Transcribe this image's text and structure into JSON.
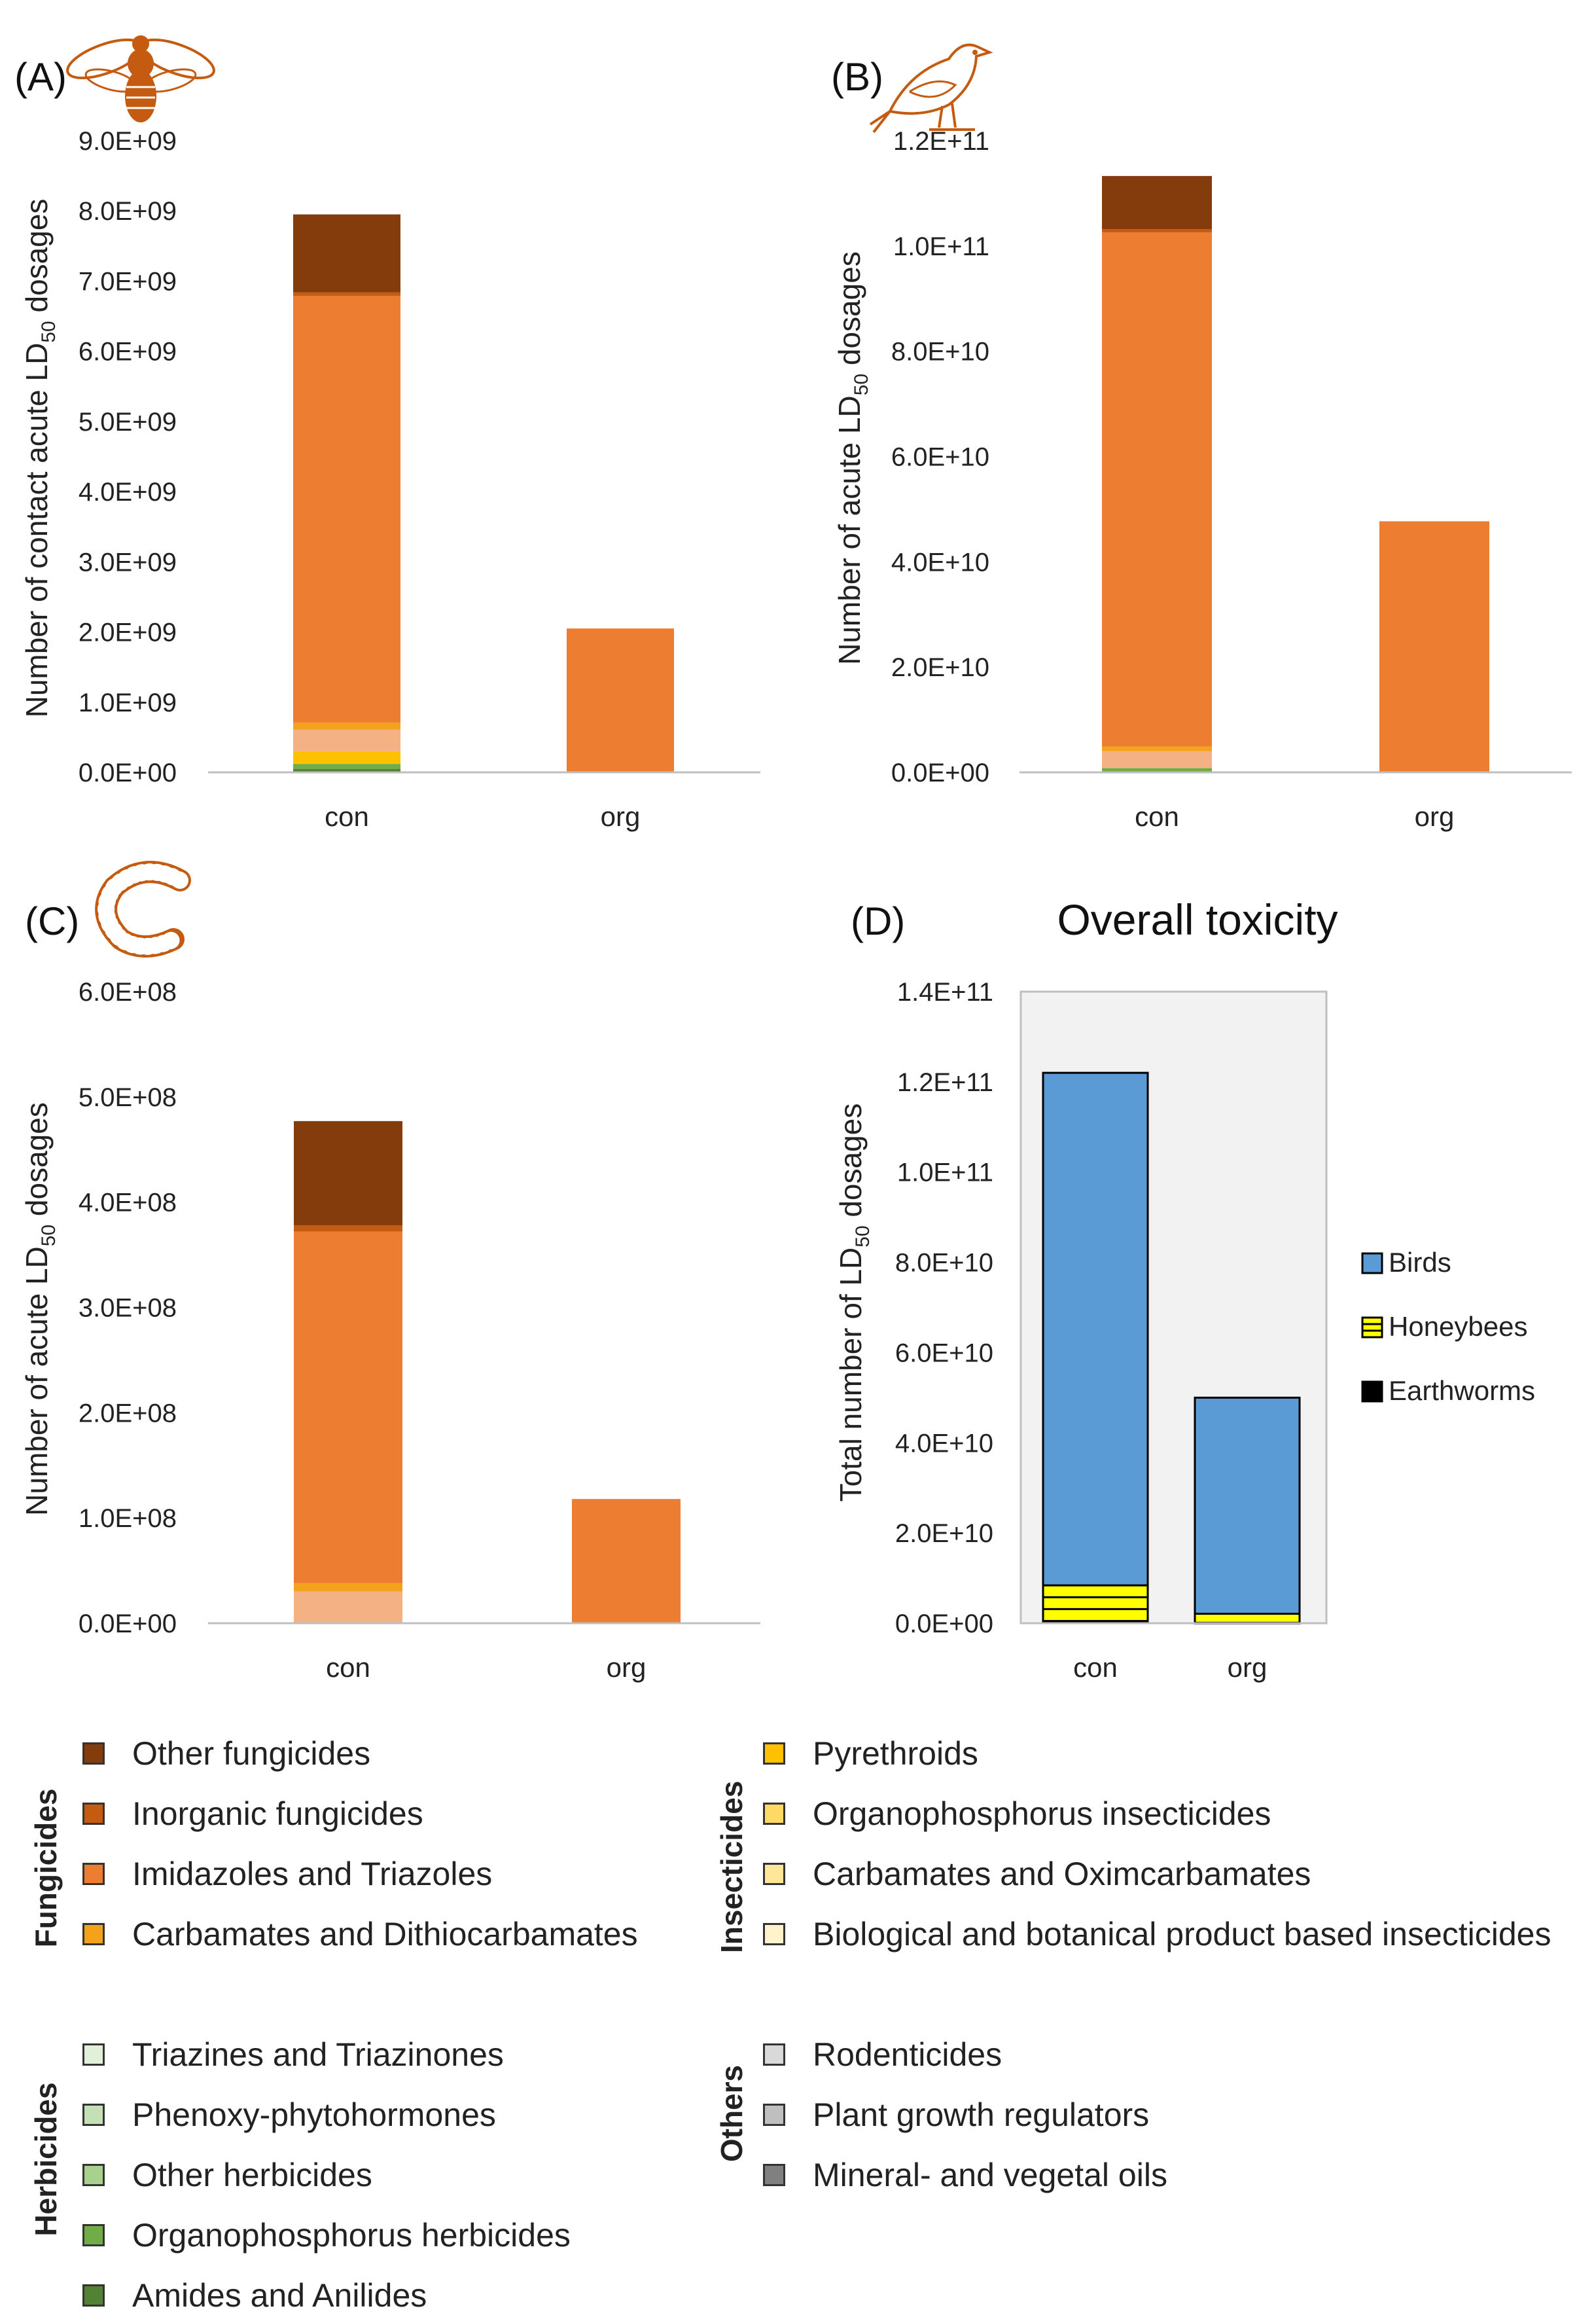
{
  "colors": {
    "other_fungicides": "#843c0c",
    "inorganic_fungicides": "#c55a11",
    "imidazoles_triazoles": "#ed7d31",
    "carbamates_dithio": "#f4a21c",
    "pyrethroids": "#ffc000",
    "organophos_insecticides": "#ffd966",
    "carbamates_oxim": "#ffe699",
    "bio_botanical": "#fff2cc",
    "salmon": "#f4b183",
    "triazines": "#e2f0d9",
    "phenoxy": "#c5e0b4",
    "other_herbicides": "#a9d18e",
    "organophos_herbicides": "#70ad47",
    "amides": "#548235",
    "rodenticides": "#d9d9d9",
    "plant_growth": "#bfbfbf",
    "mineral_oils": "#808080",
    "birds": "#5b9bd5",
    "honeybees": "#ffff00",
    "earthworms": "#000000"
  },
  "chart_data": [
    {
      "id": "A",
      "panel_label": "(A)",
      "icon": "bee-icon",
      "type": "bar",
      "stacked": true,
      "categories": [
        "con",
        "org"
      ],
      "ylabel_main": "Number of contact acute LD",
      "ylabel_sub": "50",
      "ylabel_tail": " dosages",
      "ylim": [
        0,
        9000000000
      ],
      "yticks": [
        0,
        1000000000,
        2000000000,
        3000000000,
        4000000000,
        5000000000,
        6000000000,
        7000000000,
        8000000000,
        9000000000
      ],
      "ytick_labels": [
        "0.0E+00",
        "1.0E+09",
        "2.0E+09",
        "3.0E+09",
        "4.0E+09",
        "5.0E+09",
        "6.0E+09",
        "7.0E+09",
        "8.0E+09",
        "9.0E+09"
      ],
      "series": [
        {
          "name": "Amides and Anilides",
          "color_key": "amides",
          "values": [
            50000000,
            0
          ]
        },
        {
          "name": "Organophosphorus herbicides",
          "color_key": "organophos_herbicides",
          "values": [
            70000000,
            0
          ]
        },
        {
          "name": "Pyrethroids",
          "color_key": "pyrethroids",
          "values": [
            180000000,
            0
          ]
        },
        {
          "name": "Carbamates and Oximcarbamates",
          "color_key": "salmon",
          "values": [
            310000000,
            0
          ]
        },
        {
          "name": "Carbamates and Dithiocarbamates",
          "color_key": "carbamates_dithio",
          "values": [
            100000000,
            0
          ]
        },
        {
          "name": "Imidazoles and Triazoles",
          "color_key": "imidazoles_triazoles",
          "values": [
            6080000000,
            2050000000
          ]
        },
        {
          "name": "Inorganic fungicides",
          "color_key": "inorganic_fungicides",
          "values": [
            50000000,
            0
          ]
        },
        {
          "name": "Other fungicides",
          "color_key": "other_fungicides",
          "values": [
            1110000000,
            0
          ]
        }
      ]
    },
    {
      "id": "B",
      "panel_label": "(B)",
      "icon": "bird-icon",
      "type": "bar",
      "stacked": true,
      "categories": [
        "con",
        "org"
      ],
      "ylabel_main": "Number of acute LD",
      "ylabel_sub": "50",
      "ylabel_tail": " dosages",
      "ylim": [
        0,
        120000000000
      ],
      "yticks": [
        0,
        20000000000,
        40000000000,
        60000000000,
        80000000000,
        100000000000,
        120000000000
      ],
      "ytick_labels": [
        "0.0E+00",
        "2.0E+10",
        "4.0E+10",
        "6.0E+10",
        "8.0E+10",
        "1.0E+11",
        "1.2E+11"
      ],
      "series": [
        {
          "name": "Organophosphorus herbicides",
          "color_key": "organophos_herbicides",
          "values": [
            800000000,
            0
          ]
        },
        {
          "name": "Carbamates and Oximcarbamates",
          "color_key": "salmon",
          "values": [
            3200000000,
            0
          ]
        },
        {
          "name": "Carbamates and Dithiocarbamates",
          "color_key": "carbamates_dithio",
          "values": [
            900000000,
            0
          ]
        },
        {
          "name": "Imidazoles and Triazoles",
          "color_key": "imidazoles_triazoles",
          "values": [
            97700000000,
            47700000000
          ]
        },
        {
          "name": "Inorganic fungicides",
          "color_key": "inorganic_fungicides",
          "values": [
            600000000,
            0
          ]
        },
        {
          "name": "Other fungicides",
          "color_key": "other_fungicides",
          "values": [
            10100000000,
            0
          ]
        }
      ]
    },
    {
      "id": "C",
      "panel_label": "(C)",
      "icon": "earthworm-icon",
      "type": "bar",
      "stacked": true,
      "categories": [
        "con",
        "org"
      ],
      "ylabel_main": "Number of acute LD",
      "ylabel_sub": "50",
      "ylabel_tail": " dosages",
      "ylim": [
        0,
        600000000
      ],
      "yticks": [
        0,
        100000000,
        200000000,
        300000000,
        400000000,
        500000000,
        600000000
      ],
      "ytick_labels": [
        "0.0E+00",
        "1.0E+08",
        "2.0E+08",
        "3.0E+08",
        "4.0E+08",
        "5.0E+08",
        "6.0E+08"
      ],
      "series": [
        {
          "name": "Carbamates and Oximcarbamates",
          "color_key": "salmon",
          "values": [
            30000000,
            0
          ]
        },
        {
          "name": "Carbamates and Dithiocarbamates",
          "color_key": "carbamates_dithio",
          "values": [
            8000000,
            0
          ]
        },
        {
          "name": "Imidazoles and Triazoles",
          "color_key": "imidazoles_triazoles",
          "values": [
            334000000,
            118000000
          ]
        },
        {
          "name": "Inorganic fungicides",
          "color_key": "inorganic_fungicides",
          "values": [
            6000000,
            0
          ]
        },
        {
          "name": "Other fungicides",
          "color_key": "other_fungicides",
          "values": [
            99000000,
            0
          ]
        }
      ]
    },
    {
      "id": "D",
      "panel_label": "(D)",
      "title": "Overall toxicity",
      "type": "bar",
      "stacked": true,
      "categories": [
        "con",
        "org"
      ],
      "ylabel_main": "Total number of LD",
      "ylabel_sub": "50",
      "ylabel_tail": " dosages",
      "ylim": [
        0,
        140000000000
      ],
      "yticks": [
        0,
        20000000000,
        40000000000,
        60000000000,
        80000000000,
        100000000000,
        120000000000,
        140000000000
      ],
      "ytick_labels": [
        "0.0E+00",
        "2.0E+10",
        "4.0E+10",
        "6.0E+10",
        "8.0E+10",
        "1.0E+11",
        "1.2E+11",
        "1.4E+11"
      ],
      "series": [
        {
          "name": "Earthworms",
          "color_key": "earthworms",
          "values": [
            500000000,
            100000000
          ]
        },
        {
          "name": "Honeybees",
          "color_key": "honeybees",
          "values": [
            7900000000,
            2000000000
          ]
        },
        {
          "name": "Birds",
          "color_key": "birds",
          "values": [
            113600000000,
            47900000000
          ]
        }
      ],
      "legend": [
        "Birds",
        "Honeybees",
        "Earthworms"
      ],
      "legend_position": "right"
    }
  ],
  "legend_groups": [
    {
      "title": "Fungicides",
      "items": [
        {
          "label": "Other fungicides",
          "color_key": "other_fungicides"
        },
        {
          "label": "Inorganic fungicides",
          "color_key": "inorganic_fungicides"
        },
        {
          "label": "Imidazoles and Triazoles",
          "color_key": "imidazoles_triazoles"
        },
        {
          "label": "Carbamates and Dithiocarbamates",
          "color_key": "carbamates_dithio"
        }
      ]
    },
    {
      "title": "Insecticides",
      "items": [
        {
          "label": "Pyrethroids",
          "color_key": "pyrethroids"
        },
        {
          "label": "Organophosphorus insecticides",
          "color_key": "organophos_insecticides"
        },
        {
          "label": "Carbamates and Oximcarbamates",
          "color_key": "carbamates_oxim"
        },
        {
          "label": "Biological and botanical product based insecticides",
          "color_key": "bio_botanical"
        }
      ]
    },
    {
      "title": "Herbicides",
      "items": [
        {
          "label": "Triazines and Triazinones",
          "color_key": "triazines"
        },
        {
          "label": "Phenoxy-phytohormones",
          "color_key": "phenoxy"
        },
        {
          "label": "Other herbicides",
          "color_key": "other_herbicides"
        },
        {
          "label": "Organophosphorus herbicides",
          "color_key": "organophos_herbicides"
        },
        {
          "label": "Amides and Anilides",
          "color_key": "amides"
        }
      ]
    },
    {
      "title": "Others",
      "items": [
        {
          "label": "Rodenticides",
          "color_key": "rodenticides"
        },
        {
          "label": "Plant growth regulators",
          "color_key": "plant_growth"
        },
        {
          "label": "Mineral- and vegetal oils",
          "color_key": "mineral_oils"
        }
      ]
    }
  ]
}
